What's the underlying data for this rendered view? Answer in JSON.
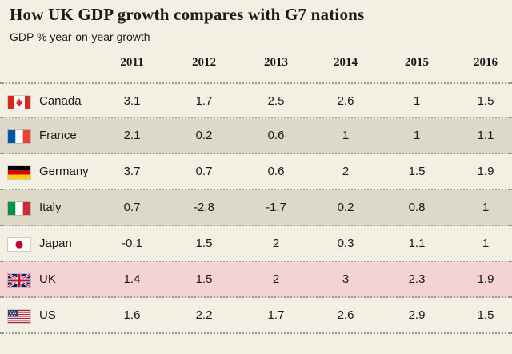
{
  "title": "How UK GDP growth compares with G7 nations",
  "subtitle": "GDP % year-on-year growth",
  "chart_data": {
    "type": "table",
    "columns": [
      "2011",
      "2012",
      "2013",
      "2014",
      "2015",
      "2016"
    ],
    "rows": [
      {
        "country": "Canada",
        "flag": "canada-flag-icon",
        "values": [
          "3.1",
          "1.7",
          "2.5",
          "2.6",
          "1",
          "1.5"
        ]
      },
      {
        "country": "France",
        "flag": "france-flag-icon",
        "values": [
          "2.1",
          "0.2",
          "0.6",
          "1",
          "1",
          "1.1"
        ]
      },
      {
        "country": "Germany",
        "flag": "germany-flag-icon",
        "values": [
          "3.7",
          "0.7",
          "0.6",
          "2",
          "1.5",
          "1.9"
        ]
      },
      {
        "country": "Italy",
        "flag": "italy-flag-icon",
        "values": [
          "0.7",
          "-2.8",
          "-1.7",
          "0.2",
          "0.8",
          "1"
        ]
      },
      {
        "country": "Japan",
        "flag": "japan-flag-icon",
        "values": [
          "-0.1",
          "1.5",
          "2",
          "0.3",
          "1.1",
          "1"
        ]
      },
      {
        "country": "UK",
        "flag": "uk-flag-icon",
        "values": [
          "1.4",
          "1.5",
          "2",
          "3",
          "2.3",
          "1.9"
        ]
      },
      {
        "country": "US",
        "flag": "us-flag-icon",
        "values": [
          "1.6",
          "2.2",
          "1.7",
          "2.6",
          "2.9",
          "1.5"
        ]
      }
    ]
  },
  "colors": {
    "background": "#f3efe3",
    "shaded_row": "#ddd9c9",
    "highlight_row": "#f5d3d3"
  }
}
